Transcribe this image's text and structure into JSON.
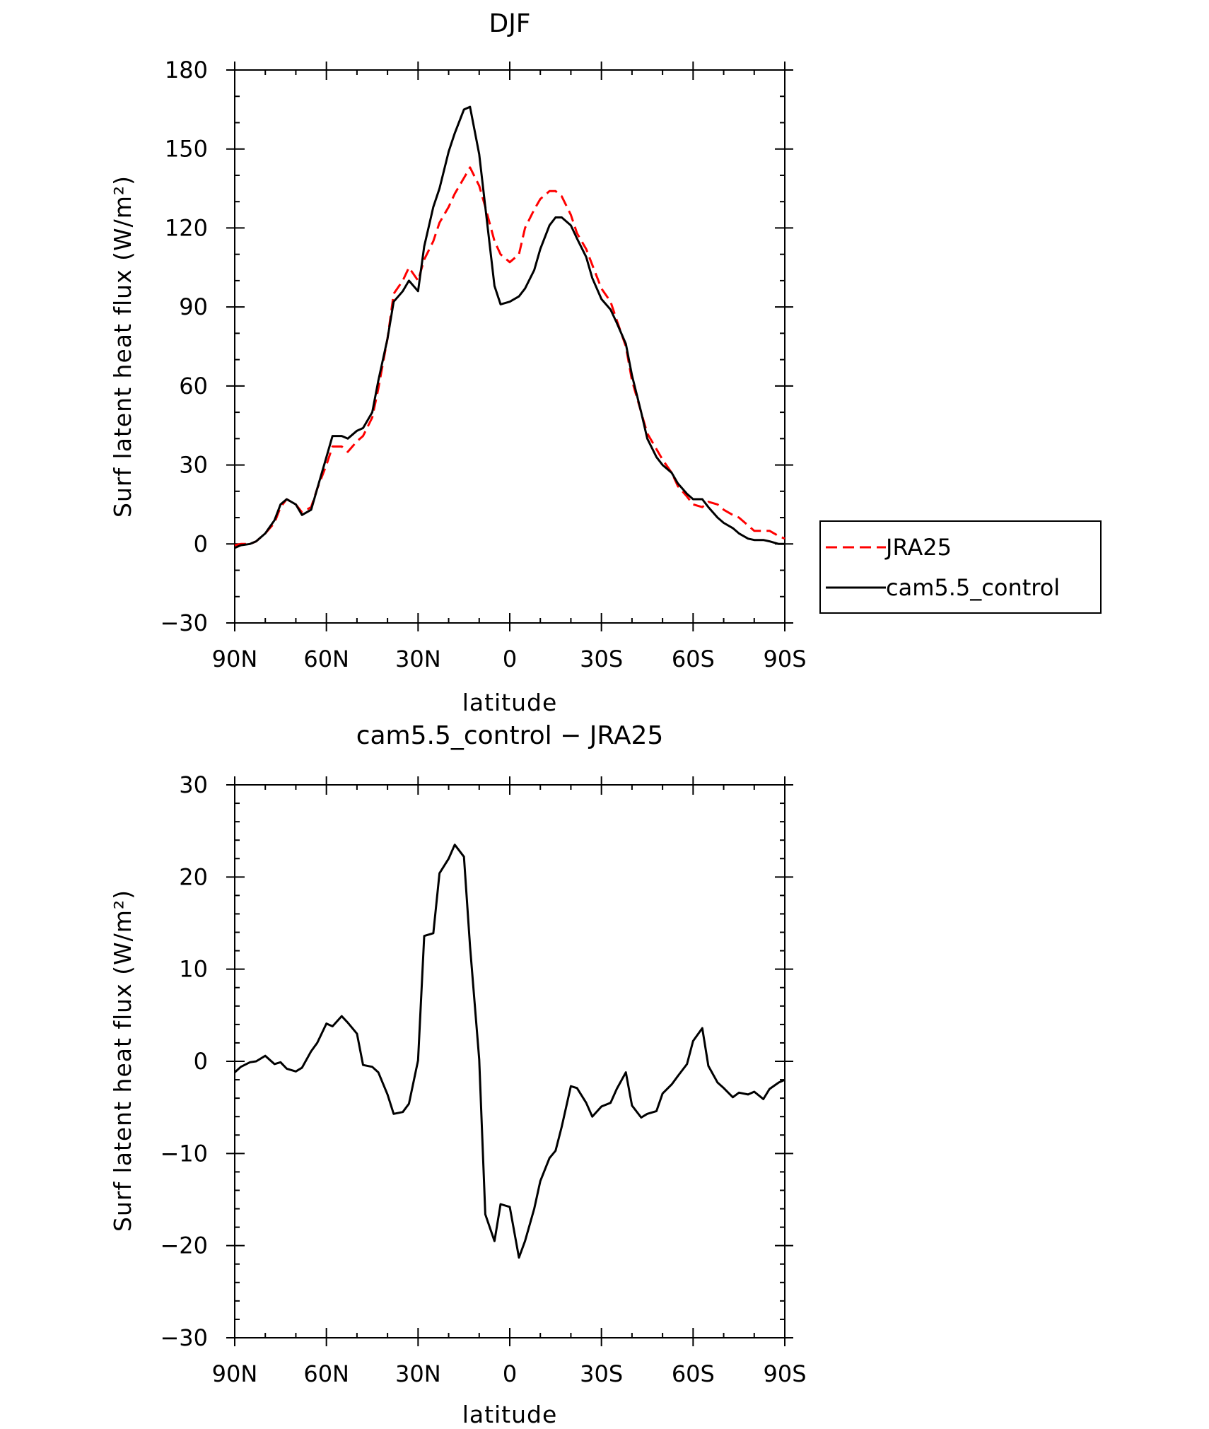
{
  "chart_data": [
    {
      "type": "line",
      "title": "DJF",
      "xlabel": "latitude",
      "ylabel": "Surf latent heat flux (W/m²)",
      "x_range": [
        90,
        -90
      ],
      "xticks": [
        90,
        60,
        30,
        0,
        -30,
        -60,
        -90
      ],
      "xtick_labels": [
        "90N",
        "60N",
        "30N",
        "0",
        "30S",
        "60S",
        "90S"
      ],
      "ylim": [
        -30,
        180
      ],
      "yticks": [
        -30,
        0,
        30,
        60,
        90,
        120,
        150,
        180
      ],
      "ytick_labels": [
        "−30",
        "0",
        "30",
        "60",
        "90",
        "120",
        "150",
        "180"
      ],
      "grid": false,
      "legend_position": "right",
      "series": [
        {
          "name": "JRA25",
          "color": "#ff0000",
          "dash": "dashed",
          "x": [
            90,
            88,
            85,
            83,
            80,
            77,
            75,
            73,
            70,
            68,
            65,
            63,
            60,
            58,
            55,
            53,
            50,
            48,
            45,
            43,
            40,
            38,
            35,
            33,
            30,
            28,
            25,
            23,
            20,
            18,
            15,
            13,
            10,
            8,
            5,
            3,
            0,
            -3,
            -5,
            -8,
            -10,
            -13,
            -15,
            -17,
            -20,
            -22,
            -25,
            -27,
            -30,
            -33,
            -35,
            -38,
            -40,
            -43,
            -45,
            -48,
            -50,
            -53,
            -55,
            -58,
            -60,
            -63,
            -65,
            -68,
            -70,
            -73,
            -75,
            -78,
            -80,
            -83,
            -85,
            -88,
            -90
          ],
          "values": [
            -0.5,
            0,
            0,
            1,
            4,
            8,
            14,
            17,
            15,
            12,
            14,
            21,
            30,
            37,
            37,
            35,
            39,
            41,
            48,
            59,
            78,
            95,
            100,
            105,
            100,
            108,
            115,
            122,
            128,
            133,
            139,
            143,
            136,
            128,
            115,
            110,
            107,
            110,
            120,
            127,
            131,
            134,
            134,
            132,
            125,
            118,
            112,
            106,
            97,
            92,
            85,
            75,
            62,
            50,
            42,
            36,
            32,
            27,
            22,
            18,
            15,
            14,
            16,
            15,
            13,
            11,
            10,
            7,
            5,
            5,
            5,
            3,
            2
          ]
        },
        {
          "name": "cam5.5_control",
          "color": "#000000",
          "dash": "solid",
          "x": [
            90,
            88,
            85,
            83,
            80,
            77,
            75,
            73,
            70,
            68,
            65,
            63,
            60,
            58,
            55,
            53,
            50,
            48,
            45,
            43,
            40,
            38,
            35,
            33,
            30,
            28,
            25,
            23,
            20,
            18,
            15,
            13,
            10,
            8,
            5,
            3,
            0,
            -3,
            -5,
            -8,
            -10,
            -13,
            -15,
            -17,
            -20,
            -22,
            -25,
            -27,
            -30,
            -33,
            -35,
            -38,
            -40,
            -43,
            -45,
            -48,
            -50,
            -53,
            -55,
            -58,
            -60,
            -63,
            -65,
            -68,
            -70,
            -73,
            -75,
            -78,
            -80,
            -83,
            -85,
            -88,
            -90
          ],
          "values": [
            -1.5,
            -0.5,
            0,
            1,
            4,
            9,
            15,
            17,
            15,
            11,
            13,
            21,
            33,
            41,
            41,
            40,
            43,
            44,
            50,
            62,
            78,
            92,
            96,
            100,
            96,
            113,
            128,
            135,
            149,
            156,
            165,
            166,
            148,
            128,
            98,
            91,
            92,
            94,
            97,
            104,
            112,
            121,
            124,
            124,
            121,
            116,
            109,
            101,
            93,
            89,
            84,
            76,
            64,
            50,
            40,
            33,
            30,
            27,
            23,
            19,
            17,
            17,
            14,
            10,
            8,
            6,
            4,
            2,
            1.5,
            1.5,
            1,
            0,
            0
          ]
        }
      ]
    },
    {
      "type": "line",
      "title": "cam5.5_control − JRA25",
      "xlabel": "latitude",
      "ylabel": "Surf latent heat flux (W/m²)",
      "x_range": [
        90,
        -90
      ],
      "xticks": [
        90,
        60,
        30,
        0,
        -30,
        -60,
        -90
      ],
      "xtick_labels": [
        "90N",
        "60N",
        "30N",
        "0",
        "30S",
        "60S",
        "90S"
      ],
      "ylim": [
        -30,
        30
      ],
      "yticks": [
        -30,
        -20,
        -10,
        0,
        10,
        20,
        30
      ],
      "ytick_labels": [
        "−30",
        "−20",
        "−10",
        "0",
        "10",
        "20",
        "30"
      ],
      "grid": false,
      "series": [
        {
          "color": "#000000",
          "dash": "solid",
          "x": [
            90,
            88,
            85,
            83,
            80,
            77,
            75,
            73,
            70,
            68,
            65,
            63,
            60,
            58,
            55,
            53,
            50,
            48,
            45,
            43,
            40,
            38,
            35,
            33,
            30,
            28,
            25,
            23,
            20,
            18,
            15,
            13,
            10,
            8,
            5,
            3,
            0,
            -3,
            -5,
            -8,
            -10,
            -13,
            -15,
            -17,
            -20,
            -22,
            -25,
            -27,
            -30,
            -33,
            -35,
            -38,
            -40,
            -43,
            -45,
            -48,
            -50,
            -53,
            -55,
            -58,
            -60,
            -63,
            -65,
            -68,
            -70,
            -73,
            -75,
            -78,
            -80,
            -83,
            -85,
            -88,
            -90
          ],
          "values": [
            -1.2,
            -0.6,
            -0.1,
            0,
            0.6,
            -0.3,
            -0.1,
            -0.8,
            -1.1,
            -0.7,
            1.1,
            2.0,
            4.1,
            3.8,
            4.9,
            4.2,
            3.0,
            -0.4,
            -0.6,
            -1.2,
            -3.6,
            -5.7,
            -5.5,
            -4.6,
            0.1,
            13.6,
            13.9,
            20.4,
            22.0,
            23.5,
            22.2,
            12.5,
            0.2,
            -16.6,
            -19.5,
            -15.5,
            -15.8,
            -21.3,
            -19.5,
            -16.0,
            -13.0,
            -10.5,
            -9.7,
            -7.1,
            -2.7,
            -2.9,
            -4.5,
            -6.0,
            -4.9,
            -4.5,
            -3.0,
            -1.2,
            -4.8,
            -6.1,
            -5.7,
            -5.4,
            -3.5,
            -2.5,
            -1.6,
            -0.3,
            2.2,
            3.6,
            -0.5,
            -2.3,
            -2.9,
            -3.9,
            -3.4,
            -3.6,
            -3.3,
            -4.1,
            -3.0,
            -2.3,
            -2.0
          ]
        }
      ]
    }
  ]
}
